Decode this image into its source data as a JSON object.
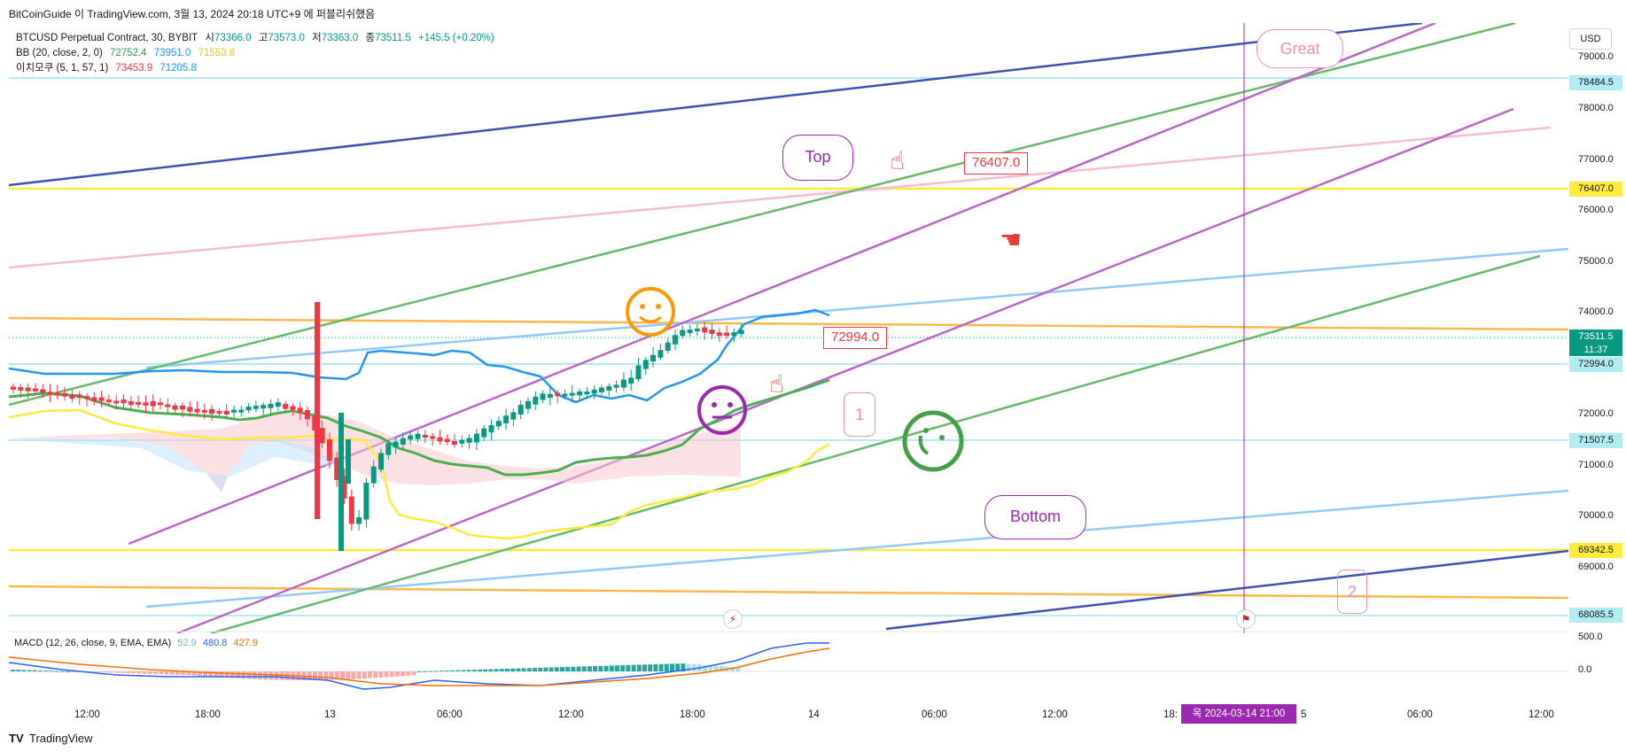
{
  "header": {
    "text": "BitCoinGuide 이 TradingView.com, 3월 13, 2024 20:18 UTC+9 에 퍼블리쉬했음"
  },
  "legend": {
    "symbol": "BTCUSD Perpetual Contract, 30, BYBIT",
    "open_label": "시",
    "open": "73366.0",
    "high_label": "고",
    "high": "73573.0",
    "low_label": "저",
    "low": "73363.0",
    "close_label": "종",
    "close": "73511.5",
    "change": "+145.5 (+0.20%)",
    "bb_title": "BB (20, close, 2, 0)",
    "bb_basis": "72752.4",
    "bb_upper": "73951.0",
    "bb_lower": "71553.8",
    "ichimoku_title": "이치모쿠 (5, 1, 57, 1)",
    "ichimoku_a": "73453.9",
    "ichimoku_b": "71205.8"
  },
  "price_axis": {
    "currency": "USD",
    "ticks": [
      "79000.0",
      "78000.0",
      "77000.0",
      "76000.0",
      "75000.0",
      "74000.0",
      "72000.0",
      "71000.0",
      "70000.0",
      "69000.0"
    ],
    "tags": {
      "t78484": "78484.5",
      "t76407": "76407.0",
      "last_price": "73511.5",
      "countdown": "11:37",
      "t72994": "72994.0",
      "t71507": "71507.5",
      "t69342": "69342.5",
      "t68085": "68085.5"
    },
    "macd_ticks": [
      "500.0",
      "0.0"
    ]
  },
  "colors": {
    "up": "#089981",
    "down": "#f23645",
    "bb_basis": "#4caf50",
    "bb_upper": "#2196f3",
    "bb_lower": "#ffeb3b",
    "ichimoku_cloud": "#f8c8cc",
    "trend_navy": "#3f51b5",
    "trend_purple": "#ba68c8",
    "trend_green": "#66bb6a",
    "trend_pink": "#f8bbd0",
    "trend_blue": "#90caf9",
    "hline_yellow": "#ffeb3b",
    "hline_cyan": "#b2ebf2",
    "hline_orange": "#ffb74d",
    "crosshair": "#9c27b0",
    "macd_line": "#2962ff",
    "macd_signal": "#ff6d00"
  },
  "macd": {
    "title": "MACD (12, 26, close, 9, EMA, EMA)",
    "histogram": "52.9",
    "macd": "480.8",
    "signal": "427.9"
  },
  "time_axis": {
    "labels": [
      "12:00",
      "18:00",
      "13",
      "06:00",
      "12:00",
      "18:00",
      "14",
      "06:00",
      "12:00",
      "18:",
      "5",
      "06:00",
      "12:00"
    ],
    "crosshair_label": "목 2024-03-14   21:00"
  },
  "annotations": {
    "callout_top": "Top",
    "callout_bottom": "Bottom",
    "callout_great": "Great",
    "price_note_a": "76407.0",
    "price_note_b": "72994.0",
    "num_1": "1",
    "num_2": "2"
  },
  "icons": {
    "pointing_hand": "pointing-hand-icon",
    "smiley": "smiley-face-icon",
    "neutral": "neutral-face-icon",
    "wink": "winking-face-icon",
    "event": "flash-event-icon",
    "us_flag": "us-flag-icon"
  },
  "footer": {
    "brand": "TradingView",
    "logo": "TV"
  }
}
